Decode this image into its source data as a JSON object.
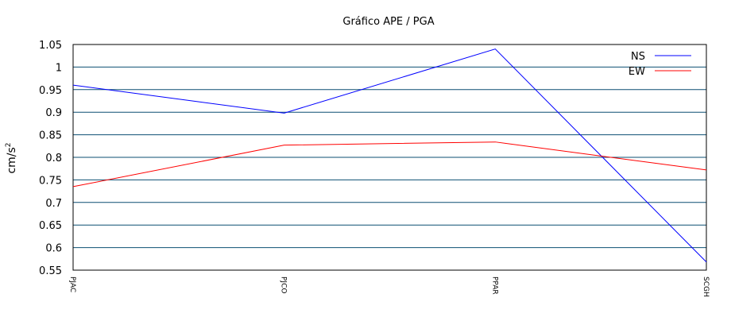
{
  "chart_data": {
    "type": "line",
    "title": "Gráfico  APE / PGA",
    "xlabel": "",
    "ylabel": "cm/s",
    "ylabel_superscript": "2",
    "categories": [
      "PJAC",
      "PJCO",
      "PPAR",
      "SCGH"
    ],
    "ylim": [
      0.55,
      1.05
    ],
    "yticks": [
      "0.55",
      "0.6",
      "0.65",
      "0.7",
      "0.75",
      "0.8",
      "0.85",
      "0.9",
      "0.95",
      "1",
      "1.05"
    ],
    "grid": "horizontal",
    "legend_position": "top-right",
    "series": [
      {
        "name": "NS",
        "color": "#0000ff",
        "values": [
          0.96,
          0.898,
          1.04,
          0.568
        ]
      },
      {
        "name": "EW",
        "color": "#ff0000",
        "values": [
          0.735,
          0.827,
          0.834,
          0.772
        ]
      }
    ]
  },
  "colors": {
    "grid": "#0b4f72",
    "frame": "#000000"
  }
}
